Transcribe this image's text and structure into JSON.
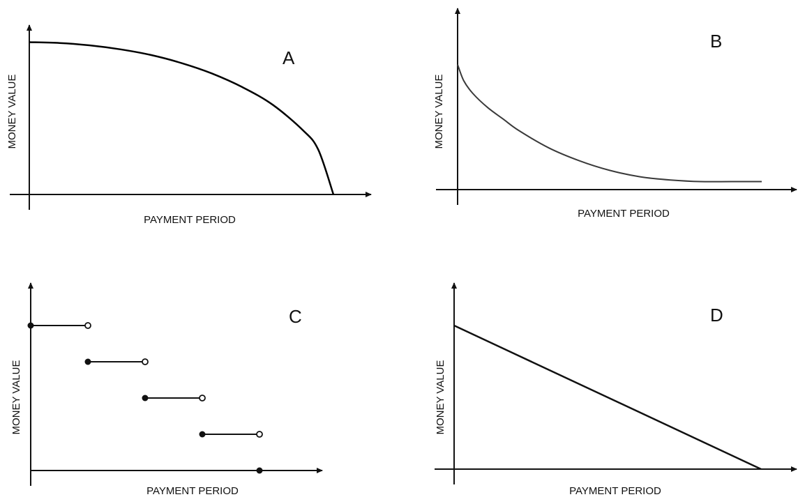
{
  "chart_data": [
    {
      "panel": "A",
      "type": "line",
      "shape": "concave decreasing curve",
      "xlabel": "PAYMENT PERIOD",
      "ylabel": "MONEY VALUE",
      "xlim": [
        0,
        1
      ],
      "ylim": [
        0,
        1
      ],
      "x": [
        0,
        0.1,
        0.2,
        0.3,
        0.4,
        0.5,
        0.6,
        0.7,
        0.8,
        0.9,
        0.95,
        1.0
      ],
      "y": [
        0.95,
        0.945,
        0.93,
        0.905,
        0.87,
        0.82,
        0.755,
        0.67,
        0.56,
        0.4,
        0.28,
        0
      ]
    },
    {
      "panel": "B",
      "type": "line",
      "shape": "convex decreasing curve leveling off",
      "xlabel": "PAYMENT PERIOD",
      "ylabel": "MONEY VALUE",
      "xlim": [
        0,
        1
      ],
      "ylim": [
        0,
        1
      ],
      "x": [
        0,
        0.02,
        0.05,
        0.1,
        0.15,
        0.2,
        0.3,
        0.4,
        0.5,
        0.6,
        0.7,
        0.8,
        0.9,
        1.0
      ],
      "y": [
        0.78,
        0.68,
        0.6,
        0.51,
        0.44,
        0.37,
        0.26,
        0.18,
        0.12,
        0.08,
        0.06,
        0.05,
        0.05,
        0.05
      ]
    },
    {
      "panel": "C",
      "type": "step",
      "shape": "decreasing step function, closed dot at left end, open dot at right end",
      "xlabel": "PAYMENT PERIOD",
      "ylabel": "MONEY VALUE",
      "xlim": [
        0,
        5
      ],
      "ylim": [
        0,
        5
      ],
      "steps": [
        {
          "x_start": 0,
          "x_end": 1,
          "y": 4
        },
        {
          "x_start": 1,
          "x_end": 2,
          "y": 3
        },
        {
          "x_start": 2,
          "x_end": 3,
          "y": 2
        },
        {
          "x_start": 3,
          "x_end": 4,
          "y": 1
        }
      ],
      "final_point": {
        "x": 4,
        "y": 0
      }
    },
    {
      "panel": "D",
      "type": "line",
      "shape": "straight decreasing line",
      "xlabel": "PAYMENT PERIOD",
      "ylabel": "MONEY VALUE",
      "xlim": [
        0,
        1
      ],
      "ylim": [
        0,
        1
      ],
      "x": [
        0,
        1
      ],
      "y": [
        1,
        0
      ]
    }
  ],
  "style": {
    "ink": "#111111",
    "curve_a": "#000000",
    "curve_b": "#3a3a3a",
    "background": "#ffffff"
  }
}
